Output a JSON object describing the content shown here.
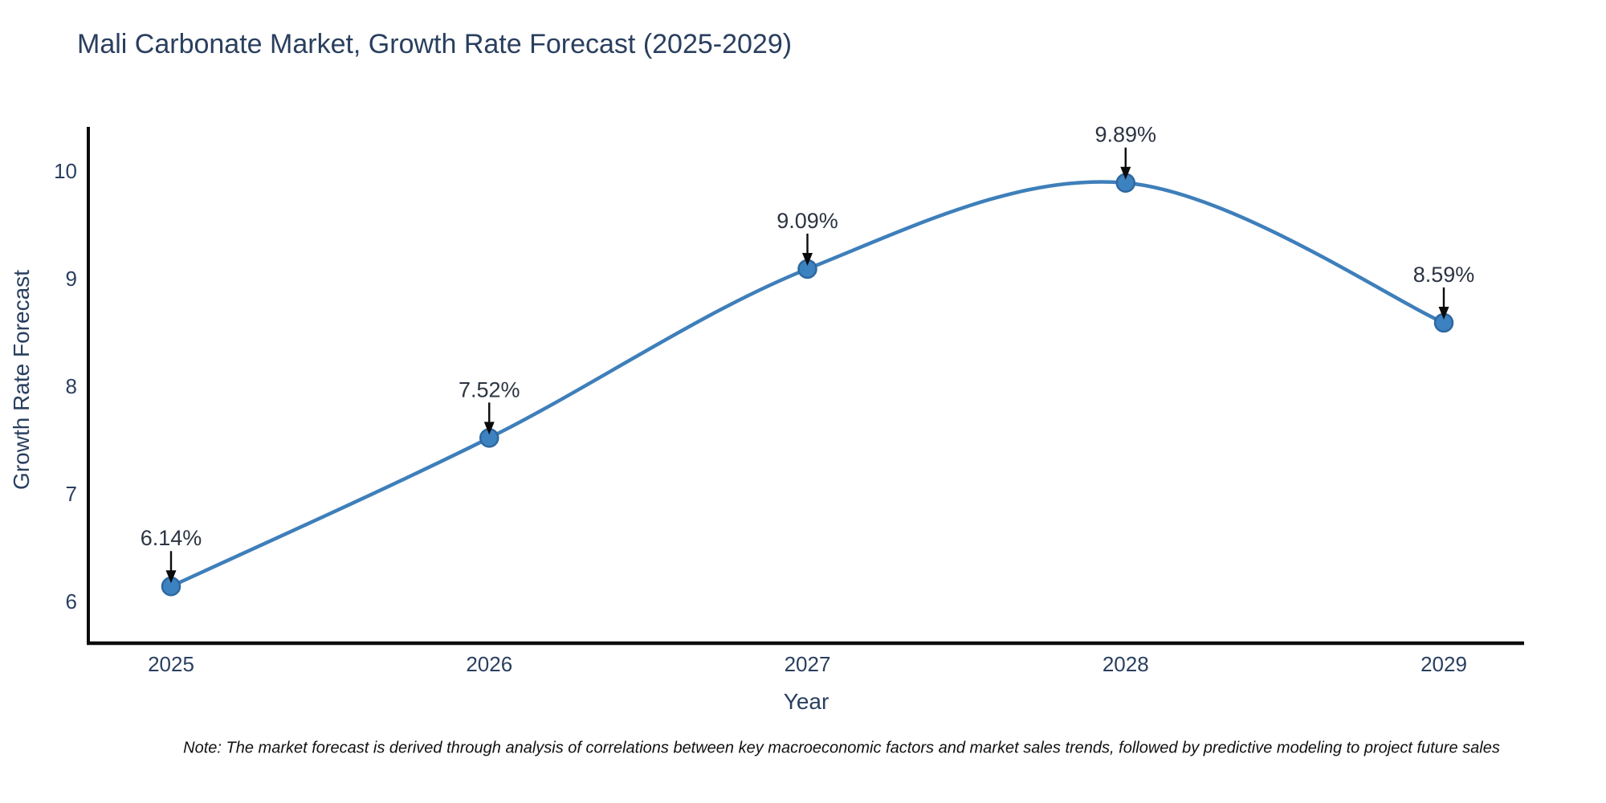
{
  "title": "Mali Carbonate Market, Growth Rate Forecast (2025-2029)",
  "note": "Note: The market forecast is derived through analysis of correlations between key macroeconomic factors and market sales trends, followed by predictive modeling to project future sales",
  "colors": {
    "background": "#ffffff",
    "text": "#2a3f5f",
    "axis": "#0b0b0b",
    "line": "#3e7fba",
    "marker_fill": "#3d82c0",
    "marker_edge": "#2e689f",
    "annotation_arrow": "#0b0b0b",
    "annotation_text": "#2c3442",
    "note_text": "#111111"
  },
  "chart_data": {
    "type": "line",
    "title": "Mali Carbonate Market, Growth Rate Forecast (2025-2029)",
    "xlabel": "Year",
    "ylabel": "Growth Rate Forecast",
    "categories": [
      "2025",
      "2026",
      "2027",
      "2028",
      "2029"
    ],
    "values": [
      6.14,
      7.52,
      9.09,
      9.89,
      8.59
    ],
    "point_labels": [
      "6.14%",
      "7.52%",
      "9.09%",
      "9.89%",
      "8.59%"
    ],
    "y_ticks": [
      6,
      7,
      8,
      9,
      10
    ],
    "ylim": [
      5.6,
      10.45
    ],
    "xlim_note": "categorical years 2025-2029",
    "grid": false,
    "legend_position": "none",
    "line_shape": "spline",
    "markers": true,
    "annotations": "each point labeled with percent value and downward black arrow"
  }
}
